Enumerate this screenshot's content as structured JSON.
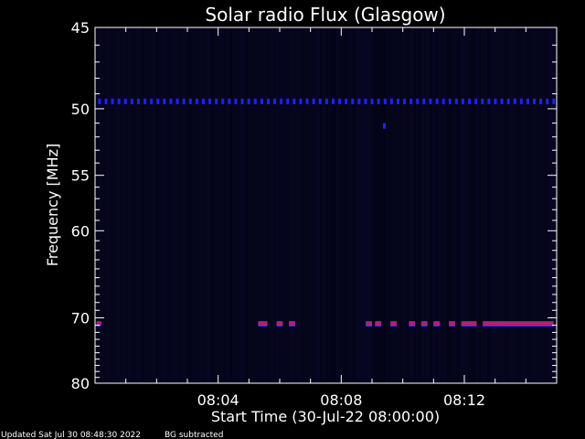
{
  "chart_data": {
    "type": "heatmap",
    "title": "Solar radio Flux (Glasgow)",
    "xlabel": "Start Time (30-Jul-22 08:00:00)",
    "ylabel": "Frequency [MHz]",
    "x_unit": "minutes after 08:00:00",
    "xlim": [
      0,
      15
    ],
    "x_ticks": [
      {
        "value": 4,
        "label": "08:04"
      },
      {
        "value": 8,
        "label": "08:08"
      },
      {
        "value": 12,
        "label": "08:12"
      }
    ],
    "ylim": [
      45,
      80
    ],
    "y_ticks": [
      {
        "value": 45,
        "label": "45"
      },
      {
        "value": 50,
        "label": "50"
      },
      {
        "value": 55,
        "label": "55"
      },
      {
        "value": 60,
        "label": "60"
      },
      {
        "value": 70,
        "label": "70"
      },
      {
        "value": 80,
        "label": "80"
      }
    ],
    "colors": {
      "background": "#000000",
      "plot_background": "#0a0a1e",
      "band_50": "#2020ff",
      "band_71": "#b0207a",
      "band_71_edge": "#3030ff"
    },
    "features": [
      {
        "name": "band near 49.5 MHz",
        "freq": 49.5,
        "x_start": 0.1,
        "x_end": 14.9
      },
      {
        "name": "point near 51.2 MHz",
        "freq": 51.2,
        "x": 9.4
      },
      {
        "name": "band near 70.8 MHz",
        "freq": 70.8,
        "segments": [
          [
            0.05,
            0.2
          ],
          [
            5.3,
            5.6
          ],
          [
            5.9,
            6.1
          ],
          [
            6.3,
            6.5
          ],
          [
            8.8,
            9.0
          ],
          [
            9.1,
            9.3
          ],
          [
            9.6,
            9.8
          ],
          [
            10.2,
            10.4
          ],
          [
            10.6,
            10.8
          ],
          [
            11.0,
            11.2
          ],
          [
            11.5,
            11.7
          ],
          [
            11.9,
            12.4
          ],
          [
            12.6,
            14.9
          ]
        ]
      }
    ]
  },
  "footer": {
    "updated": "Updated Sat Jul 30 08:48:30 2022",
    "note": "BG subtracted"
  }
}
